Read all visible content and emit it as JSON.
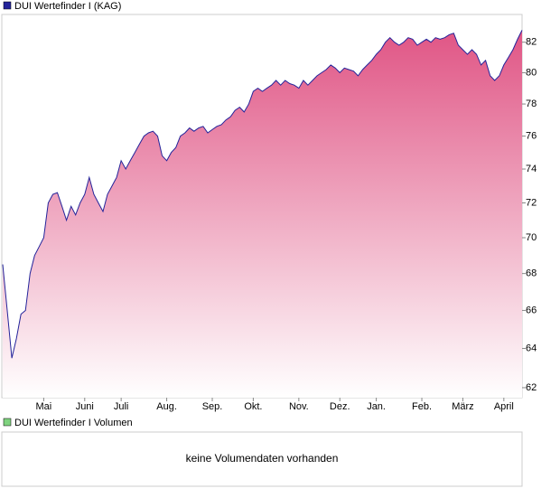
{
  "chart_data": {
    "type": "area",
    "categories": [
      null,
      null,
      null,
      null,
      null,
      null,
      null,
      null,
      null,
      "Mai",
      null,
      null,
      null,
      null,
      null,
      null,
      null,
      null,
      "Juni",
      null,
      null,
      null,
      null,
      null,
      null,
      null,
      "Juli",
      null,
      null,
      null,
      null,
      null,
      null,
      null,
      null,
      null,
      "Aug.",
      null,
      null,
      null,
      null,
      null,
      null,
      null,
      null,
      null,
      "Sep.",
      null,
      null,
      null,
      null,
      null,
      null,
      null,
      null,
      "Okt.",
      null,
      null,
      null,
      null,
      null,
      null,
      null,
      null,
      null,
      "Nov.",
      null,
      null,
      null,
      null,
      null,
      null,
      null,
      null,
      "Dez.",
      null,
      null,
      null,
      null,
      null,
      null,
      null,
      "Jan.",
      null,
      null,
      null,
      null,
      null,
      null,
      null,
      null,
      null,
      "Feb.",
      null,
      null,
      null,
      null,
      null,
      null,
      null,
      null,
      "März",
      null,
      null,
      null,
      null,
      null,
      null,
      null,
      null,
      "April",
      null,
      null,
      null,
      null
    ],
    "series": [
      {
        "name": "DUI Wertefinder I (KAG)",
        "color": "#23239a",
        "fill": "#e05585",
        "values": [
          68.5,
          66,
          63.5,
          64.5,
          65.8,
          66,
          68,
          69,
          69.5,
          70,
          72,
          72.5,
          72.6,
          71.8,
          71,
          71.8,
          71.3,
          72,
          72.5,
          73.5,
          72.5,
          72,
          71.5,
          72.5,
          73,
          73.5,
          74.5,
          74,
          74.5,
          75,
          75.5,
          76,
          76.2,
          76.3,
          76,
          74.8,
          74.5,
          75,
          75.3,
          76,
          76.2,
          76.5,
          76.3,
          76.5,
          76.6,
          76.2,
          76.4,
          76.6,
          76.7,
          77,
          77.2,
          77.6,
          77.8,
          77.5,
          78,
          78.8,
          79,
          78.8,
          79,
          79.2,
          79.5,
          79.2,
          79.5,
          79.3,
          79.2,
          79,
          79.5,
          79.2,
          79.5,
          79.8,
          80,
          80.2,
          80.5,
          80.3,
          80,
          80.3,
          80.2,
          80.1,
          79.8,
          80.2,
          80.5,
          80.8,
          81.2,
          81.5,
          82,
          82.3,
          82,
          81.8,
          82,
          82.3,
          82.2,
          81.8,
          82,
          82.2,
          82,
          82.3,
          82.2,
          82.3,
          82.5,
          82.6,
          81.8,
          81.5,
          81.2,
          81.5,
          81.2,
          80.5,
          80.8,
          79.8,
          79.5,
          79.8,
          80.5,
          81,
          81.5,
          82.2,
          82.8
        ]
      }
    ],
    "ylim": [
      61.5,
      83.8
    ],
    "yticks": [
      62,
      64,
      66,
      68,
      70,
      72,
      74,
      76,
      78,
      80,
      82
    ],
    "log_scale": true
  },
  "volume_panel": {
    "legend": "DUI Wertefinder I Volumen",
    "color": "#7fd37f",
    "message": "keine Volumendaten vorhanden"
  }
}
